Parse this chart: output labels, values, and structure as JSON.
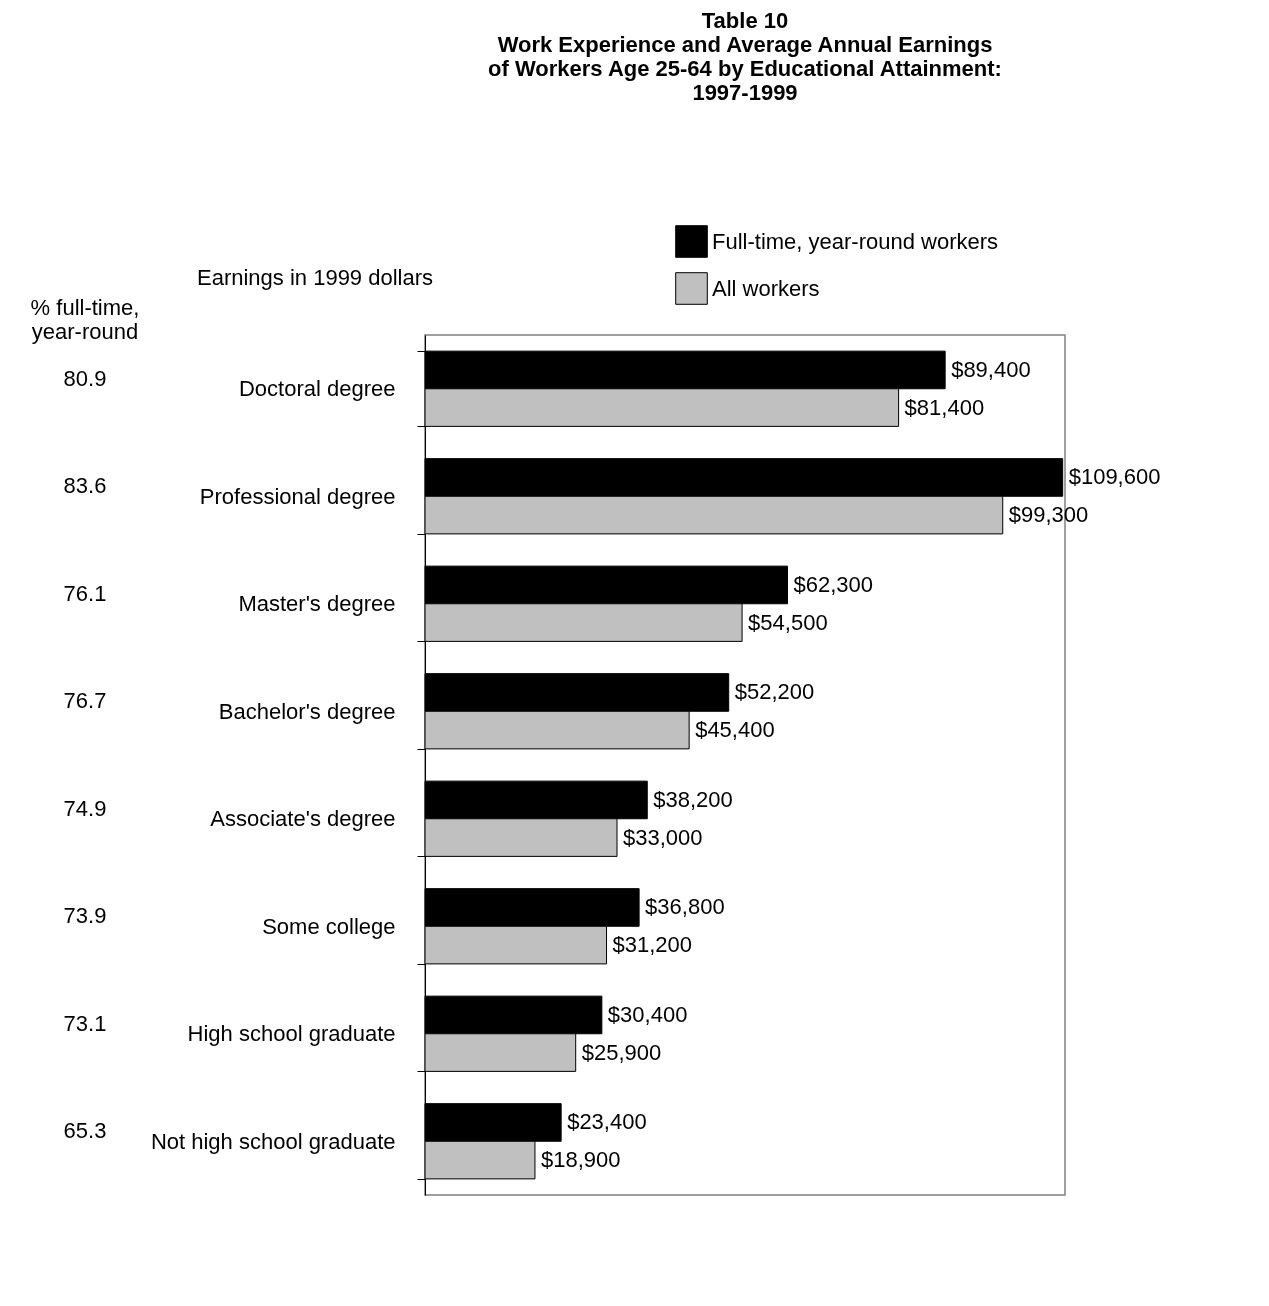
{
  "chart_data": {
    "type": "bar",
    "orientation": "horizontal",
    "title": "Table 10\nWork Experience and Average Annual Earnings\nof Workers Age 25-64 by Educational Attainment:\n1997-1999",
    "categories": [
      "Doctoral degree",
      "Professional degree",
      "Master's degree",
      "Bachelor's degree",
      "Associate's degree",
      "Some college",
      "High school graduate",
      "Not high school graduate"
    ],
    "series": [
      {
        "name": "Full-time, year-round workers",
        "color": "#000000",
        "values": [
          89400,
          109600,
          62300,
          52200,
          38200,
          36800,
          30400,
          23400
        ],
        "value_labels": [
          "$89,400",
          "$109,600",
          "$62,300",
          "$52,200",
          "$38,200",
          "$36,800",
          "$30,400",
          "$23,400"
        ]
      },
      {
        "name": "All workers",
        "color": "#c0c0c0",
        "values": [
          81400,
          99300,
          54500,
          45400,
          33000,
          31200,
          25900,
          18900
        ],
        "value_labels": [
          "$81,400",
          "$99,300",
          "$54,500",
          "$45,400",
          "$33,000",
          "$31,200",
          "$25,900",
          "$18,900"
        ]
      }
    ],
    "annotations": [
      "% full-time, year-round",
      "Earnings in 1999 dollars",
      "80.9",
      "83.6",
      "76.1",
      "76.7",
      "74.9",
      "73.9",
      "73.1",
      "65.3"
    ],
    "legend": "top right",
    "grid": false,
    "tick_labels": "y"
  }
}
